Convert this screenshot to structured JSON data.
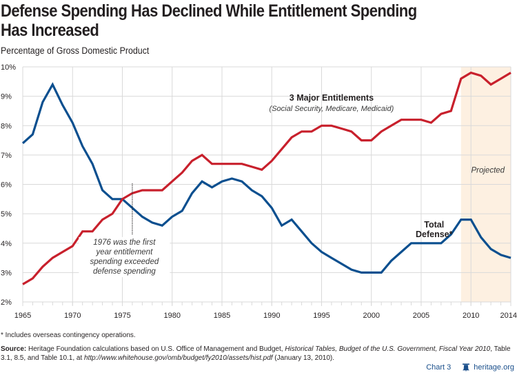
{
  "title": "Defense Spending Has Declined While Entitlement Spending Has Increased",
  "title_line1": "Defense Spending Has Declined While Entitlement Spending",
  "title_line2": "Has Increased",
  "subtitle": "Percentage of Gross Domestic Product",
  "footnote": "* Includes overseas contingency operations.",
  "source": {
    "label": "Source:",
    "text1": " Heritage Foundation calculations based on U.S. Office of Management and Budget, ",
    "italic1": "Historical Tables, Budget of the U.S. Government, Fiscal Year 2010",
    "text2": ", Table 3.1, 8.5, and Table 10.1, at ",
    "italic2": "http://www.whitehouse.gov/omb/budget/fy2010/assets/hist.pdf",
    "text3": " (January 13, 2010)."
  },
  "credit": {
    "chart_label": "Chart 3",
    "logo_icon": "liberty-bell-icon",
    "site": "heritage.org"
  },
  "colors": {
    "defense": "#0b4f8f",
    "entitlements": "#c8202c",
    "projected_shade": "#fdf0e1",
    "grid": "#d9d9d9",
    "text": "#231f20",
    "credit": "#1a4f8b"
  },
  "chart_data": {
    "type": "line",
    "title": "Defense Spending Has Declined While Entitlement Spending Has Increased",
    "xlabel": "",
    "ylabel": "Percentage of Gross Domestic Product",
    "xlim": [
      1965,
      2014
    ],
    "ylim": [
      2,
      10
    ],
    "grid": true,
    "x_ticks": [
      "1965",
      "1970",
      "1975",
      "1980",
      "1985",
      "1990",
      "1995",
      "2000",
      "2005",
      "2010",
      "2014"
    ],
    "x_tick_values": [
      1965,
      1970,
      1975,
      1980,
      1985,
      1990,
      1995,
      2000,
      2005,
      2010,
      2014
    ],
    "y_ticks": [
      "2%",
      "3%",
      "4%",
      "5%",
      "6%",
      "7%",
      "8%",
      "9%",
      "10%"
    ],
    "y_tick_values": [
      2,
      3,
      4,
      5,
      6,
      7,
      8,
      9,
      10
    ],
    "x": [
      1965,
      1966,
      1967,
      1968,
      1969,
      1970,
      1971,
      1972,
      1973,
      1974,
      1975,
      1976,
      1977,
      1978,
      1979,
      1980,
      1981,
      1982,
      1983,
      1984,
      1985,
      1986,
      1987,
      1988,
      1989,
      1990,
      1991,
      1992,
      1993,
      1994,
      1995,
      1996,
      1997,
      1998,
      1999,
      2000,
      2001,
      2002,
      2003,
      2004,
      2005,
      2006,
      2007,
      2008,
      2009,
      2010,
      2011,
      2012,
      2013,
      2014
    ],
    "series": [
      {
        "name": "Total Defense*",
        "color": "#0b4f8f",
        "values": [
          7.4,
          7.7,
          8.8,
          9.4,
          8.7,
          8.1,
          7.3,
          6.7,
          5.8,
          5.5,
          5.5,
          5.2,
          4.9,
          4.7,
          4.6,
          4.9,
          5.1,
          5.7,
          6.1,
          5.9,
          6.1,
          6.2,
          6.1,
          5.8,
          5.6,
          5.2,
          4.6,
          4.8,
          4.4,
          4.0,
          3.7,
          3.5,
          3.3,
          3.1,
          3.0,
          3.0,
          3.0,
          3.4,
          3.7,
          4.0,
          4.0,
          4.0,
          4.0,
          4.3,
          4.8,
          4.8,
          4.2,
          3.8,
          3.6,
          3.5
        ]
      },
      {
        "name": "3 Major Entitlements",
        "subtitle": "(Social Security, Medicare, Medicaid)",
        "color": "#c8202c",
        "values": [
          2.6,
          2.8,
          3.2,
          3.5,
          3.7,
          3.9,
          4.4,
          4.4,
          4.8,
          5.0,
          5.5,
          5.7,
          5.8,
          5.8,
          5.8,
          6.1,
          6.4,
          6.8,
          7.0,
          6.7,
          6.7,
          6.7,
          6.7,
          6.6,
          6.5,
          6.8,
          7.2,
          7.6,
          7.8,
          7.8,
          8.0,
          8.0,
          7.9,
          7.8,
          7.5,
          7.5,
          7.8,
          8.0,
          8.2,
          8.2,
          8.2,
          8.1,
          8.4,
          8.5,
          9.6,
          9.8,
          9.7,
          9.4,
          9.6,
          9.8
        ]
      }
    ],
    "projected_region": {
      "from": 2009,
      "to": 2014,
      "label": "Projected"
    },
    "annotations": [
      {
        "text": "3 Major Entitlements",
        "bold": true,
        "anchor_x": 1996,
        "anchor_y": 8.85
      },
      {
        "text": "(Social Security, Medicare, Medicaid)",
        "italic": true,
        "anchor_x": 1996,
        "anchor_y": 8.5
      },
      {
        "text": "Total",
        "bold": true,
        "anchor_x": 2006.3,
        "anchor_y": 4.53
      },
      {
        "text": "Defense*",
        "bold": true,
        "anchor_x": 2006.3,
        "anchor_y": 4.2
      },
      {
        "text": "Projected",
        "italic": true,
        "anchor_x": 2011.7,
        "anchor_y": 6.4
      },
      {
        "text": "1976 was the first",
        "italic": true,
        "anchor_x": 1975.2,
        "anchor_y": 3.95
      },
      {
        "text": "year entitlement",
        "italic": true,
        "anchor_x": 1975.2,
        "anchor_y": 3.62
      },
      {
        "text": "spending exceeded",
        "italic": true,
        "anchor_x": 1975.2,
        "anchor_y": 3.29
      },
      {
        "text": "defense spending",
        "italic": true,
        "anchor_x": 1975.2,
        "anchor_y": 2.96
      }
    ],
    "marker_line": {
      "x": 1976,
      "y_from": 4.3,
      "y_to": 6.05,
      "style": "dotted"
    }
  }
}
